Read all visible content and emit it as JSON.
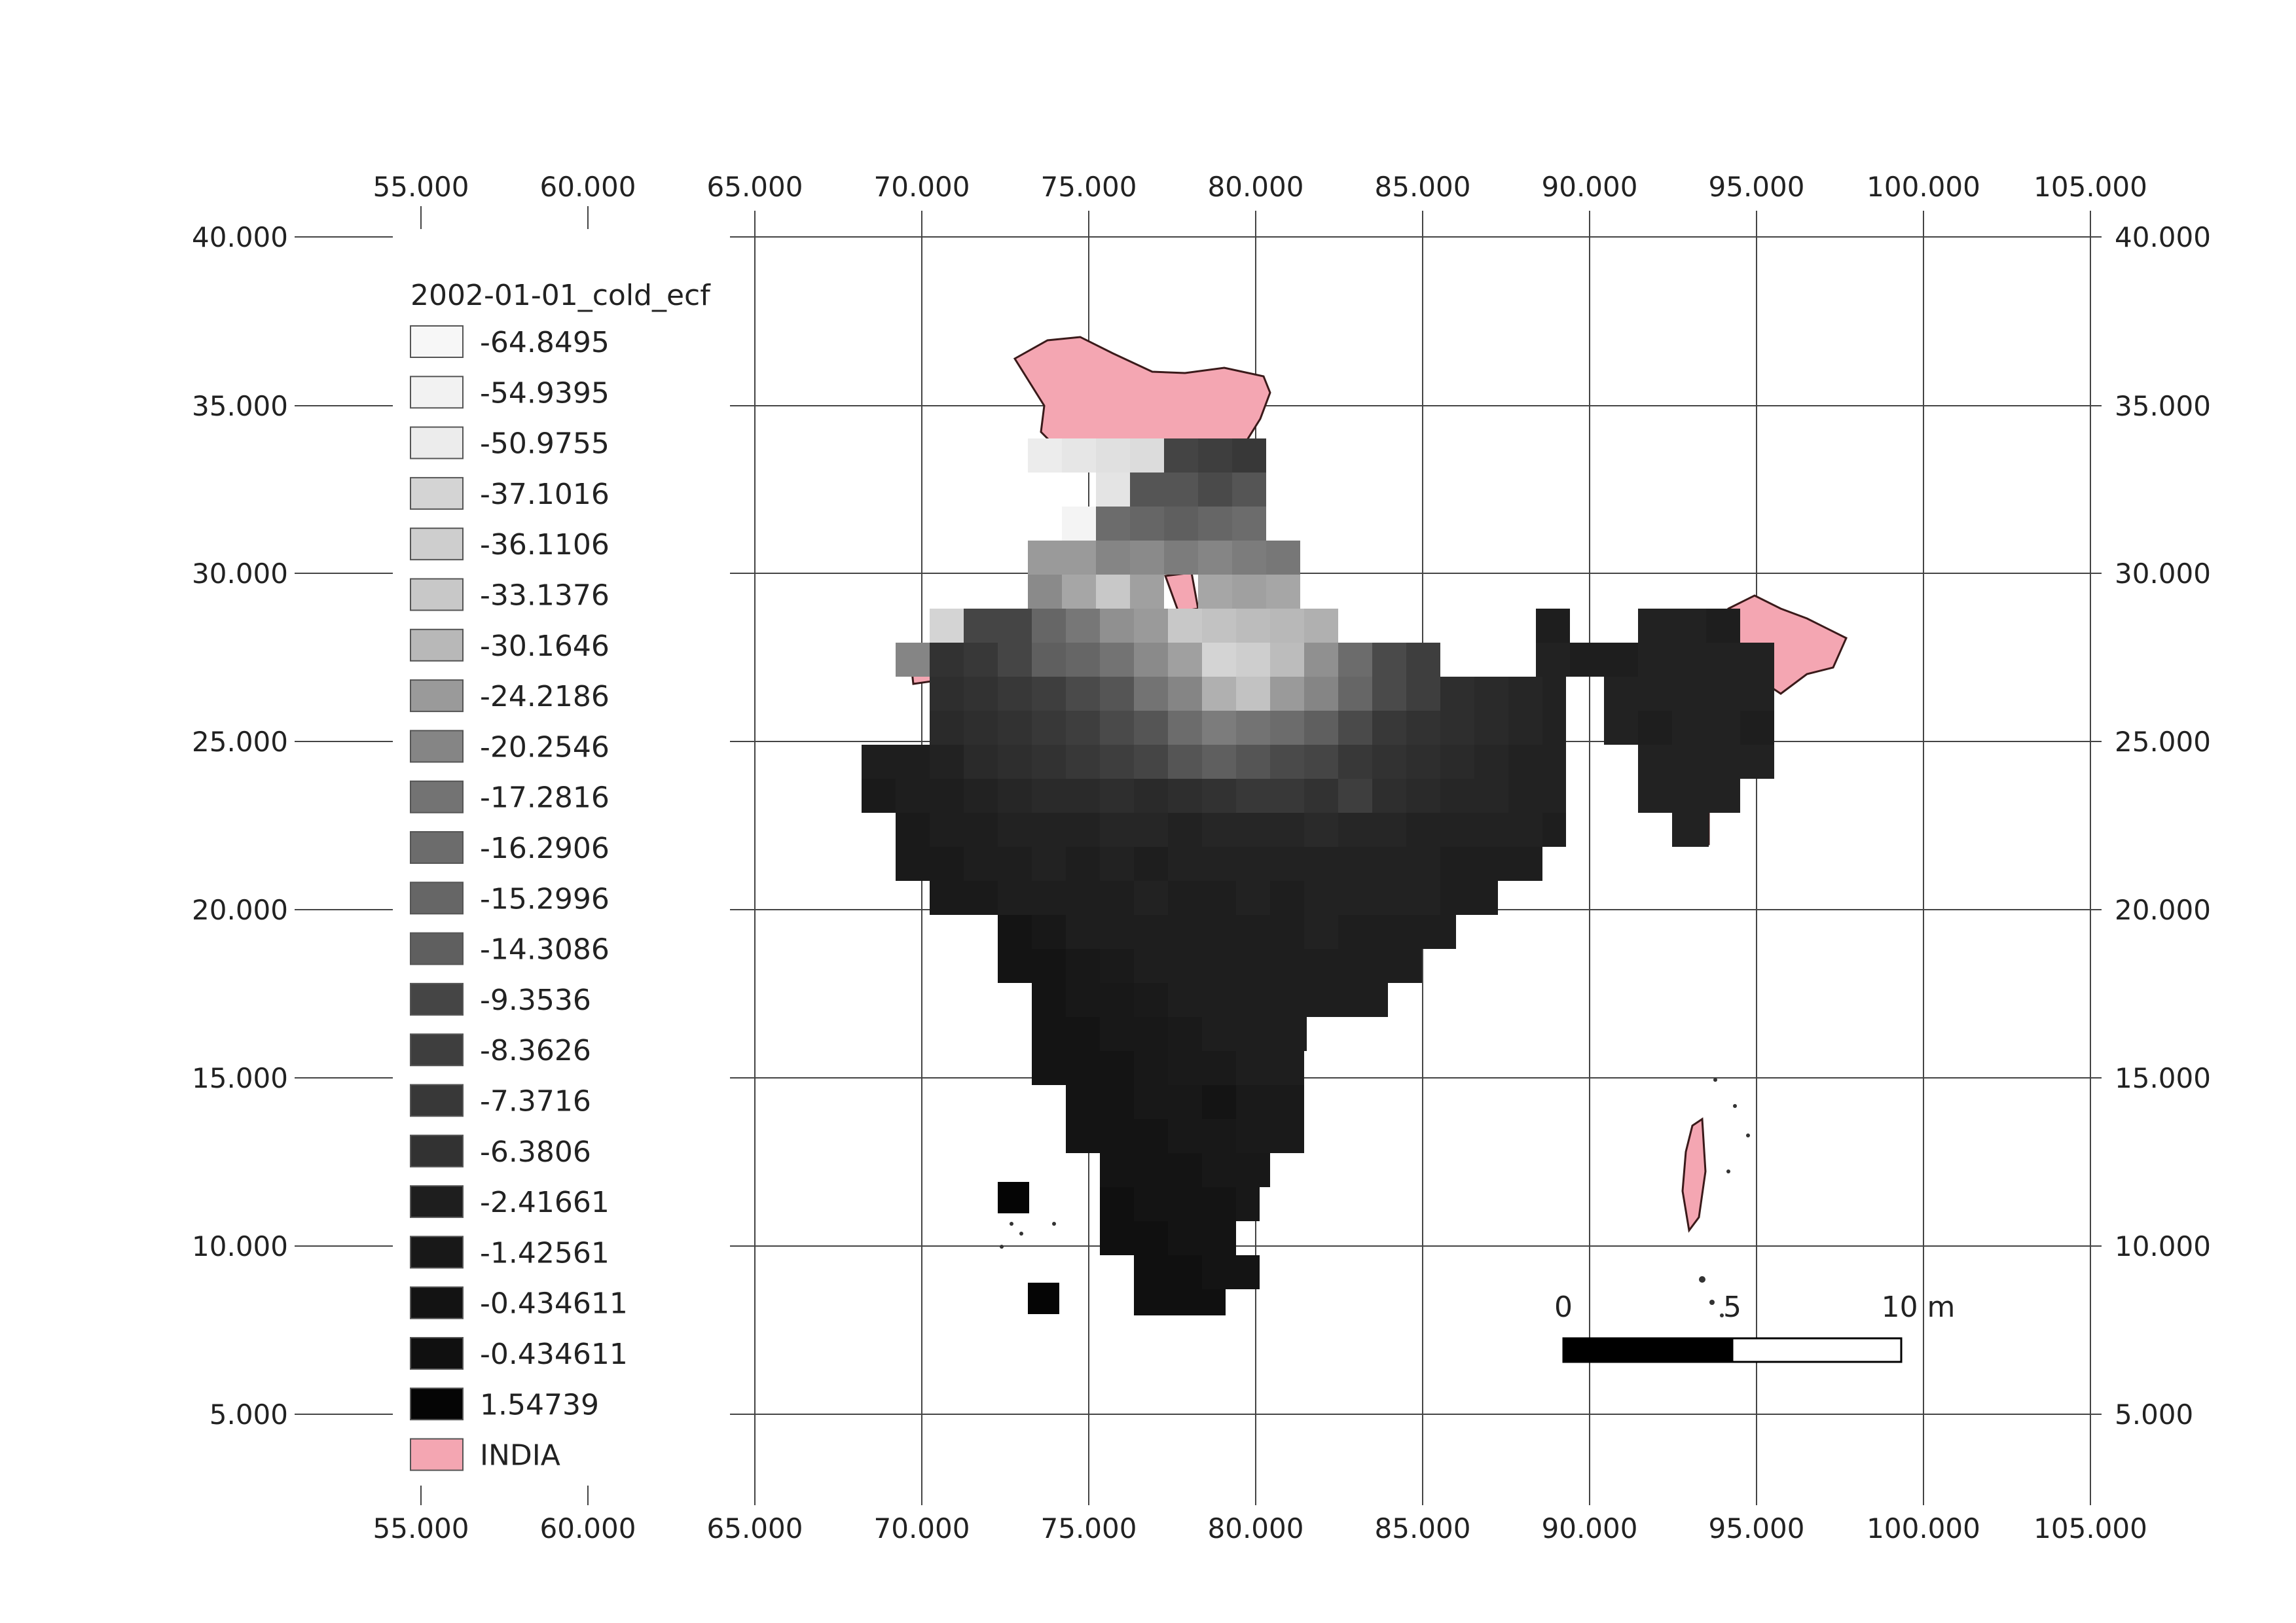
{
  "map": {
    "x_ticks": [
      "55.000",
      "60.000",
      "65.000",
      "70.000",
      "75.000",
      "80.000",
      "85.000",
      "90.000",
      "95.000",
      "100.000",
      "105.000"
    ],
    "y_ticks": [
      "40.000",
      "35.000",
      "30.000",
      "25.000",
      "20.000",
      "15.000",
      "10.000",
      "5.000"
    ],
    "legend": {
      "title": "2002-01-01_cold_ecf",
      "items": [
        {
          "label": "-64.8495",
          "color": "#f7f7f7"
        },
        {
          "label": "-54.9395",
          "color": "#f2f2f2"
        },
        {
          "label": "-50.9755",
          "color": "#ececec"
        },
        {
          "label": "-37.1016",
          "color": "#d4d4d4"
        },
        {
          "label": "-36.1106",
          "color": "#cecece"
        },
        {
          "label": "-33.1376",
          "color": "#c8c8c8"
        },
        {
          "label": "-30.1646",
          "color": "#b8b8b8"
        },
        {
          "label": "-24.2186",
          "color": "#9a9a9a"
        },
        {
          "label": "-20.2546",
          "color": "#858585"
        },
        {
          "label": "-17.2816",
          "color": "#737373"
        },
        {
          "label": "-16.2906",
          "color": "#6c6c6c"
        },
        {
          "label": "-15.2996",
          "color": "#666666"
        },
        {
          "label": "-14.3086",
          "color": "#5f5f5f"
        },
        {
          "label": "-9.3536",
          "color": "#454545"
        },
        {
          "label": "-8.3626",
          "color": "#3e3e3e"
        },
        {
          "label": "-7.3716",
          "color": "#383838"
        },
        {
          "label": "-6.3806",
          "color": "#323232"
        },
        {
          "label": "-2.41661",
          "color": "#1e1e1e"
        },
        {
          "label": "-1.42561",
          "color": "#181818"
        },
        {
          "label": "-0.434611",
          "color": "#131313"
        },
        {
          "label": "-0.434611",
          "color": "#101010"
        },
        {
          "label": "1.54739",
          "color": "#050505"
        },
        {
          "label": "INDIA",
          "color": "#f4a6b2"
        }
      ]
    },
    "scale_bar": {
      "labels": [
        "0",
        "5",
        "10 m"
      ]
    },
    "country_fill": "#f4a6b2",
    "grid_color": "#444444"
  }
}
